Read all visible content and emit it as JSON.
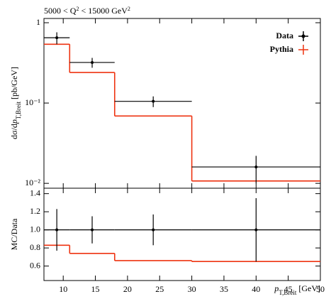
{
  "chart_data": [
    {
      "type": "histogram",
      "title": [
        "5000 < Q",
        "2",
        " < 15000 GeV",
        "2"
      ],
      "ylabel": [
        "dσ/d",
        "p",
        "T,Breit",
        " [pb/GeV]"
      ],
      "log_y": true,
      "xlim": [
        7,
        50
      ],
      "xticks": [
        10,
        15,
        20,
        25,
        30,
        35,
        40,
        45,
        50
      ],
      "ylim": [
        0.0087,
        1.13
      ],
      "yticks": [
        {
          "value": 1,
          "label": "1"
        },
        {
          "value": 0.1,
          "label": "10⁻¹"
        },
        {
          "value": 0.01,
          "label": "10⁻²"
        }
      ],
      "bins": [
        7,
        11,
        18,
        30,
        50
      ],
      "x": [
        9,
        14.5,
        24,
        40
      ],
      "legend": "upper right",
      "series": [
        {
          "name": "Data",
          "color": "#000000",
          "kind": "points",
          "values": [
            0.65,
            0.32,
            0.105,
            0.016
          ],
          "errors": [
            0.11,
            0.045,
            0.016,
            0.006
          ]
        },
        {
          "name": "Pythia",
          "color": "#ee3311",
          "kind": "step",
          "values": [
            0.54,
            0.24,
            0.069,
            0.0107
          ]
        }
      ]
    },
    {
      "type": "ratio",
      "ylabel": "MC/Data",
      "xlabel": [
        "p",
        "T,Breit",
        " [GeV]"
      ],
      "xlim": [
        7,
        50
      ],
      "xticks": [
        10,
        15,
        20,
        25,
        30,
        35,
        40,
        45,
        50
      ],
      "ylim": [
        0.44,
        1.46
      ],
      "yticks": [
        0.6,
        0.8,
        {
          "value": 1,
          "label": "1.0"
        },
        1.2,
        1.4
      ],
      "bins": [
        7,
        11,
        18,
        30,
        50
      ],
      "x": [
        9,
        14.5,
        24,
        40
      ],
      "series": [
        {
          "name": "Data",
          "color": "#000000",
          "kind": "points",
          "values": [
            1,
            1,
            1,
            1
          ],
          "errors": [
            0.23,
            0.15,
            0.17,
            0.35
          ]
        },
        {
          "name": "Pythia",
          "color": "#ee3311",
          "kind": "step",
          "values": [
            0.83,
            0.74,
            0.66,
            0.65
          ]
        }
      ]
    }
  ]
}
